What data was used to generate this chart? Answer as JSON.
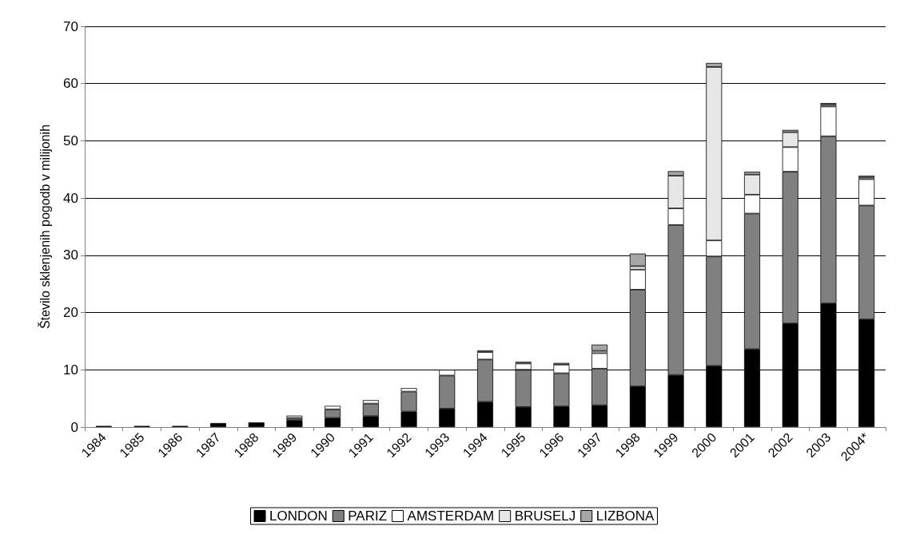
{
  "chart_data": {
    "type": "bar",
    "stacked": true,
    "ylabel": "Število sklenjenih pogodb v milijonih",
    "categories": [
      "1984",
      "1985",
      "1986",
      "1987",
      "1988",
      "1989",
      "1990",
      "1991",
      "1992",
      "1993",
      "1994",
      "1995",
      "1996",
      "1997",
      "1998",
      "1999",
      "2000",
      "2001",
      "2002",
      "2003",
      "2004*"
    ],
    "series": [
      {
        "name": "LONDON",
        "color": "#000000",
        "values": [
          0.2,
          0.2,
          0.2,
          0.7,
          0.8,
          1.2,
          1.6,
          1.9,
          2.7,
          3.2,
          4.4,
          3.5,
          3.6,
          3.8,
          7.1,
          9.1,
          10.7,
          13.6,
          18.1,
          21.6,
          18.8
        ]
      },
      {
        "name": "PARIZ",
        "color": "#808080",
        "values": [
          null,
          null,
          null,
          null,
          null,
          0.4,
          1.5,
          2.2,
          3.5,
          5.8,
          7.4,
          6.5,
          5.8,
          6.4,
          16.9,
          26.2,
          19.1,
          23.7,
          26.5,
          29.2,
          19.9
        ]
      },
      {
        "name": "AMSTERDAM",
        "color": "#ffffff",
        "values": [
          null,
          null,
          null,
          null,
          null,
          0.4,
          0.6,
          0.6,
          0.6,
          1.0,
          1.3,
          1.1,
          1.5,
          2.7,
          3.5,
          2.9,
          2.8,
          3.3,
          4.3,
          5.2,
          4.6
        ]
      },
      {
        "name": "BRUSELJ",
        "color": "#e6e6e6",
        "values": [
          null,
          null,
          null,
          null,
          null,
          null,
          null,
          null,
          null,
          null,
          null,
          null,
          null,
          0.4,
          0.6,
          5.7,
          30.3,
          3.5,
          2.6,
          0.3,
          0.3
        ]
      },
      {
        "name": "LIZBONA",
        "color": "#a6a6a6",
        "values": [
          null,
          null,
          null,
          null,
          null,
          null,
          null,
          null,
          null,
          null,
          0.3,
          0.3,
          0.3,
          1.1,
          2.2,
          0.8,
          0.7,
          0.5,
          0.4,
          0.3,
          0.3
        ]
      }
    ],
    "ylim": [
      0,
      70
    ],
    "yticks": [
      0,
      10,
      20,
      30,
      40,
      50,
      60,
      70
    ],
    "grid": "y",
    "legend": "bottom"
  }
}
